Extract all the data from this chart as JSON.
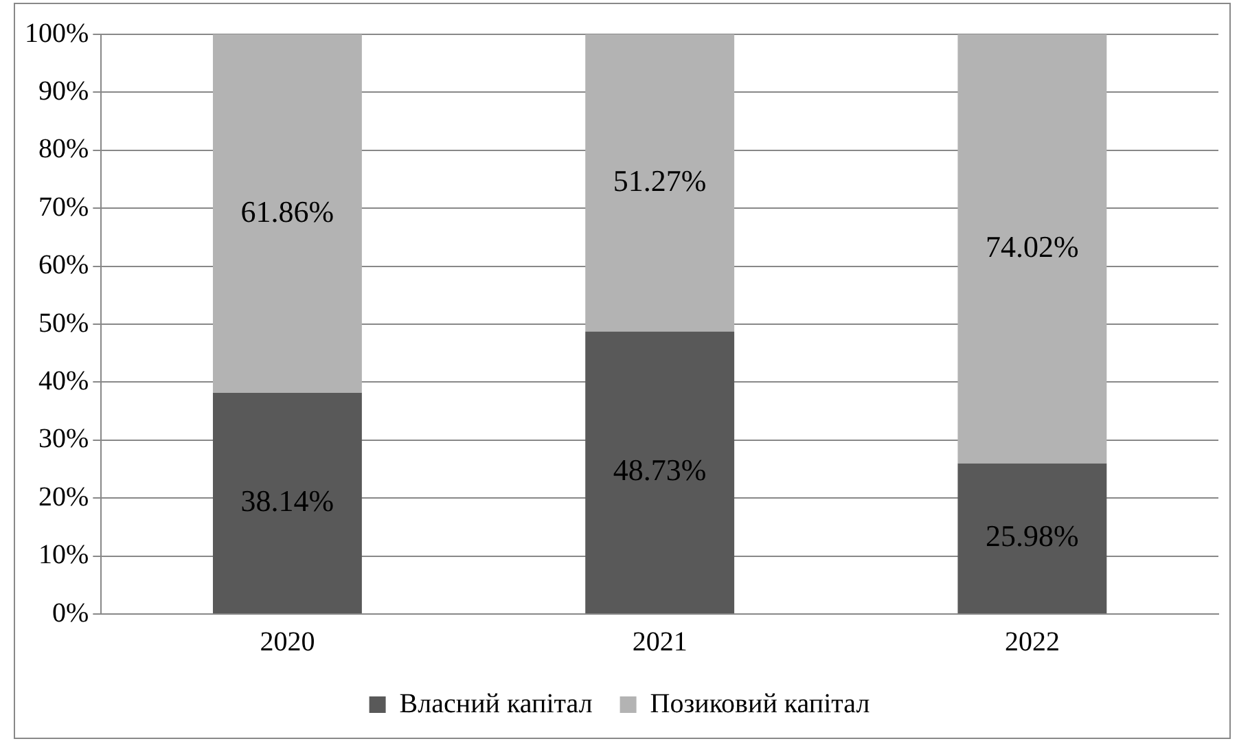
{
  "chart_data": {
    "type": "bar",
    "stacked": true,
    "categories": [
      "2020",
      "2021",
      "2022"
    ],
    "series": [
      {
        "name": "Власний капітал",
        "color": "#595959",
        "values": [
          38.14,
          48.73,
          25.98
        ],
        "value_labels": [
          "38.14%",
          "48.73%",
          "25.98%"
        ]
      },
      {
        "name": "Позиковий капітал",
        "color": "#b3b3b3",
        "values": [
          61.86,
          51.27,
          74.02
        ],
        "value_labels": [
          "61.86%",
          "51.27%",
          "74.02%"
        ]
      }
    ],
    "ylim": [
      0,
      100
    ],
    "yticks": [
      {
        "value": 0,
        "label": "0%"
      },
      {
        "value": 10,
        "label": "10%"
      },
      {
        "value": 20,
        "label": "20%"
      },
      {
        "value": 30,
        "label": "30%"
      },
      {
        "value": 40,
        "label": "40%"
      },
      {
        "value": 50,
        "label": "50%"
      },
      {
        "value": 60,
        "label": "60%"
      },
      {
        "value": 70,
        "label": "70%"
      },
      {
        "value": 80,
        "label": "80%"
      },
      {
        "value": 90,
        "label": "90%"
      },
      {
        "value": 100,
        "label": "100%"
      }
    ],
    "grid": "y",
    "legend": "bottom"
  }
}
